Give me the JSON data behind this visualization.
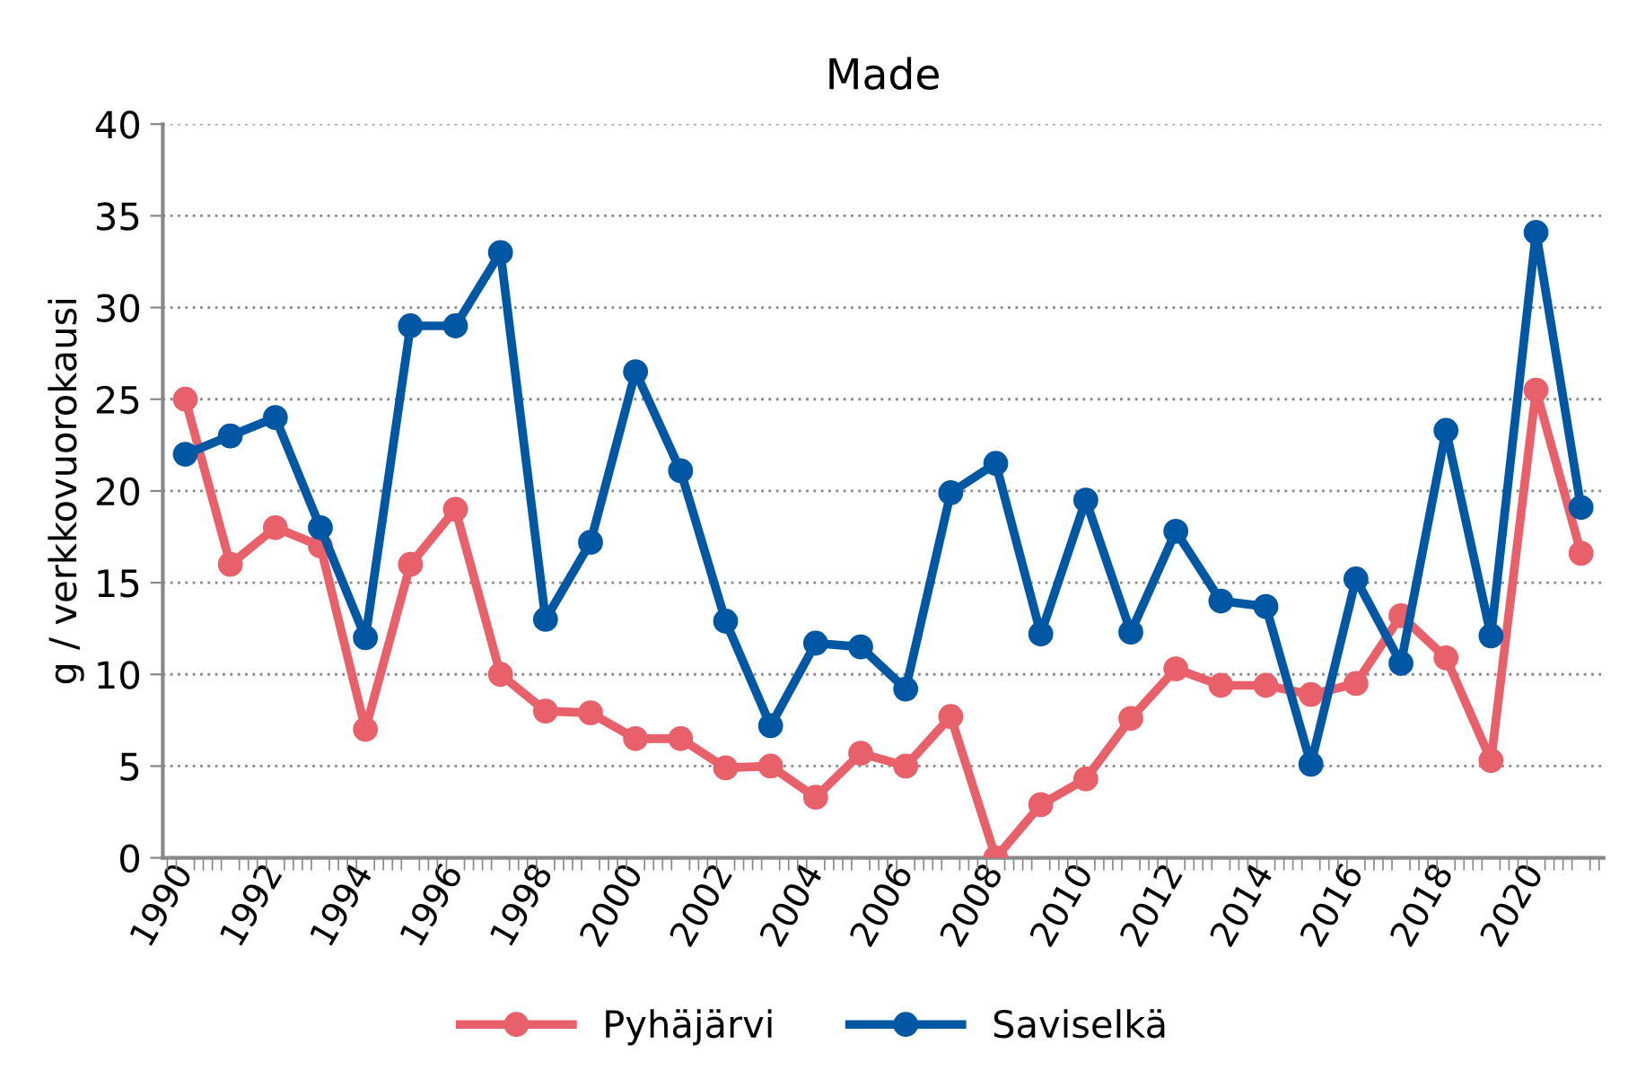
{
  "chart_data": {
    "type": "line",
    "title": "Made",
    "ylabel": "g / verkkovuorokausi",
    "categories": [
      "1990",
      null,
      "1992",
      null,
      "1994",
      null,
      "1996",
      null,
      "1998",
      null,
      "2000",
      null,
      "2002",
      null,
      "2004",
      null,
      "2006",
      null,
      "2008",
      null,
      "2010",
      null,
      "2012",
      null,
      "2014",
      null,
      "2016",
      null,
      "2018",
      null,
      "2020",
      null
    ],
    "series": [
      {
        "name": "Pyhäjärvi",
        "color": "#e8606a",
        "values": [
          25,
          16,
          18,
          17,
          7,
          16,
          19,
          10,
          8,
          7.9,
          6.5,
          6.5,
          4.9,
          5.0,
          3.3,
          5.7,
          5.0,
          7.7,
          0,
          2.9,
          4.3,
          7.6,
          10.3,
          9.4,
          9.4,
          8.9,
          9.5,
          13.2,
          10.9,
          5.3,
          25.5,
          16.6
        ]
      },
      {
        "name": "Saviselkä",
        "color": "#0057a3",
        "values": [
          22,
          23,
          24,
          18,
          12,
          29,
          29,
          33,
          13,
          17.2,
          26.5,
          21.1,
          12.9,
          7.2,
          11.7,
          11.5,
          9.2,
          19.9,
          21.5,
          12.2,
          19.5,
          12.3,
          17.8,
          14.0,
          13.7,
          5.1,
          15.2,
          10.6,
          23.3,
          12.1,
          34.1,
          19.1
        ]
      }
    ],
    "ylim": [
      0,
      40
    ],
    "yticks": [
      0,
      5,
      10,
      15,
      20,
      25,
      30,
      35,
      40
    ],
    "grid": "y",
    "legend": "bottom",
    "marker": "circle",
    "line_style": "solid"
  }
}
